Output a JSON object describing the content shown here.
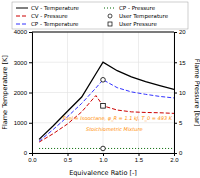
{
  "chart_data": {
    "type": "line",
    "xlabel": "Equivalence Ratio [-]",
    "ylabel": "Flame Temperature [K]",
    "y2label": "Flame Pressure [bar]",
    "xlim": [
      0.0,
      2.0
    ],
    "ylim": [
      0,
      4000
    ],
    "y2lim": [
      0,
      20
    ],
    "xticks": [
      {
        "value": 0.0,
        "label": "0.0"
      },
      0.5,
      {
        "value": 1.0,
        "label": "1.0"
      },
      1.5,
      {
        "value": 2.0,
        "label": "2.0"
      }
    ],
    "yticks": [
      0,
      1000,
      2000,
      3000,
      4000
    ],
    "y2ticks": [
      0,
      5,
      10,
      15,
      20
    ],
    "grid": true,
    "legend": "top",
    "series": [
      {
        "name": "CV - Temperature",
        "color": "#000000",
        "line_style": "solid",
        "x": [
          0.1,
          0.3,
          0.5,
          0.7,
          0.9,
          1.0,
          1.2,
          1.4,
          1.6,
          1.8,
          2.0
        ],
        "values": [
          450,
          900,
          1380,
          1850,
          2620,
          3000,
          2720,
          2520,
          2360,
          2230,
          2100
        ]
      },
      {
        "name": "CV - Pressure",
        "color": "#cc0000",
        "line_style": "dashed",
        "axis": "y2",
        "x": [
          0.1,
          0.3,
          0.5,
          0.7,
          0.9,
          1.0,
          1.2,
          1.4,
          1.6,
          1.8,
          2.0
        ],
        "values": [
          1.8,
          3.2,
          4.8,
          6.8,
          9.5,
          7.8,
          7.1,
          6.8,
          6.7,
          6.65,
          6.55
        ]
      },
      {
        "name": "CP - Temperature",
        "color": "#3333ff",
        "line_style": "dashed",
        "x": [
          0.1,
          0.3,
          0.5,
          0.7,
          0.9,
          1.0,
          1.2,
          1.4,
          1.6,
          1.8,
          2.0
        ],
        "values": [
          390,
          780,
          1200,
          1640,
          2150,
          2420,
          2160,
          2020,
          1940,
          1870,
          1820
        ]
      },
      {
        "name": "CP - Pressure",
        "color": "#006600",
        "line_style": "dotted",
        "axis": "y2",
        "x": [
          0.1,
          2.0
        ],
        "values": [
          0.75,
          0.75
        ]
      },
      {
        "name": "User Temperature",
        "type": "scatter",
        "marker": "circle",
        "color": "#000000",
        "x": [
          1.0
        ],
        "values": [
          2420
        ]
      },
      {
        "name": "User Pressure",
        "type": "scatter",
        "marker": "square",
        "color": "#000000",
        "axis": "y2",
        "x": [
          1.0
        ],
        "values": [
          7.8
        ]
      },
      {
        "type": "scatter",
        "marker": "circle",
        "color": "#000000",
        "x": [
          1.0
        ],
        "values": [
          150
        ]
      }
    ],
    "annotations": [
      {
        "text": "Fuel = Isooctane,  φ_R = 1.1 kJ, T_0 = 493 K",
        "color": "#ff8c00"
      },
      {
        "text": "Stoichiometric Mixture",
        "color": "#ff8c00"
      }
    ]
  }
}
